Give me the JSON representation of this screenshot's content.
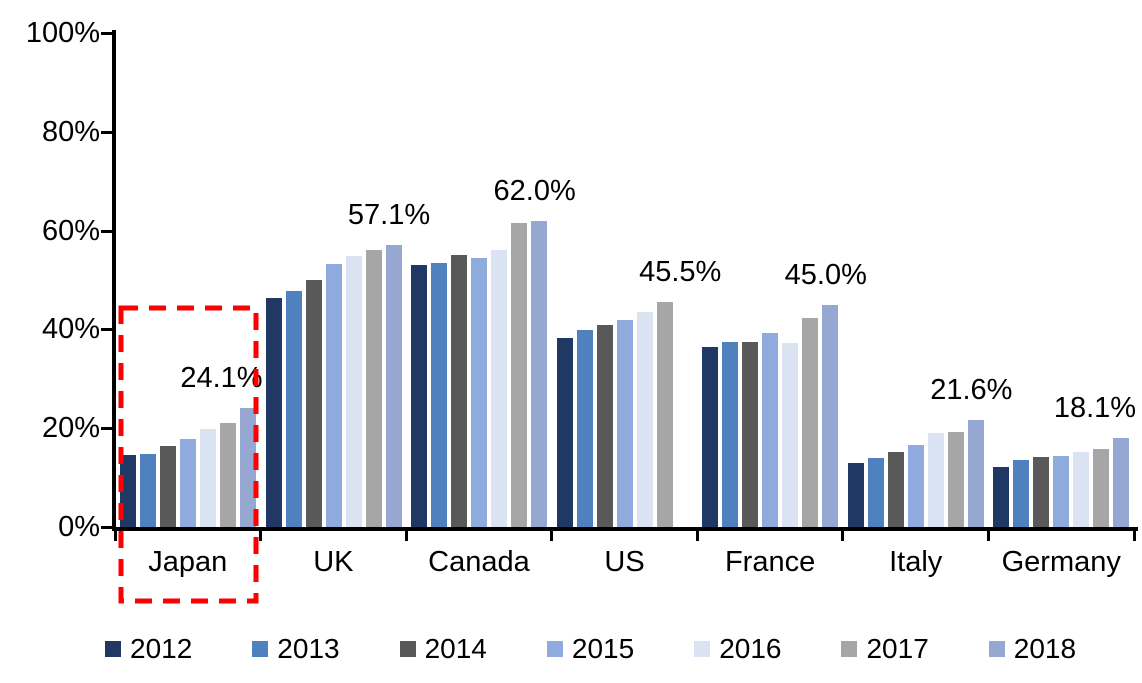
{
  "chart_data": {
    "type": "bar",
    "title": "",
    "xlabel": "",
    "ylabel": "",
    "ylim": [
      0,
      100
    ],
    "grid": false,
    "legend_position": "bottom",
    "y_axis": {
      "ticks": [
        "0%",
        "20%",
        "40%",
        "60%",
        "80%",
        "100%"
      ],
      "tick_values": [
        0,
        20,
        40,
        60,
        80,
        100
      ]
    },
    "categories": [
      "Japan",
      "UK",
      "Canada",
      "US",
      "France",
      "Italy",
      "Germany"
    ],
    "series": [
      {
        "name": "2012",
        "color": "#1F3864",
        "values": [
          14.5,
          46.3,
          53.0,
          38.2,
          36.4,
          13.0,
          12.2
        ]
      },
      {
        "name": "2013",
        "color": "#4E81BD",
        "values": [
          14.8,
          47.8,
          53.5,
          39.9,
          37.5,
          13.9,
          13.6
        ]
      },
      {
        "name": "2014",
        "color": "#595959",
        "values": [
          16.3,
          50.0,
          55.0,
          40.8,
          37.5,
          15.2,
          14.2
        ]
      },
      {
        "name": "2015",
        "color": "#8FAADC",
        "values": [
          17.8,
          53.2,
          54.5,
          42.0,
          39.2,
          16.7,
          14.4
        ]
      },
      {
        "name": "2016",
        "color": "#DAE3F2",
        "values": [
          19.8,
          54.8,
          56.1,
          43.5,
          37.2,
          19.0,
          15.1
        ]
      },
      {
        "name": "2017",
        "color": "#A6A6A6",
        "values": [
          21.0,
          56.0,
          61.5,
          45.5,
          42.3,
          19.2,
          15.8
        ]
      },
      {
        "name": "2018",
        "color": "#96A8D2",
        "values": [
          24.1,
          57.1,
          62.0,
          null,
          45.0,
          21.6,
          18.1
        ]
      }
    ],
    "annotations": [
      {
        "category": "Japan",
        "label": "24.1%"
      },
      {
        "category": "UK",
        "label": "57.1%"
      },
      {
        "category": "Canada",
        "label": "62.0%"
      },
      {
        "category": "US",
        "label": "45.5%"
      },
      {
        "category": "France",
        "label": "45.0%"
      },
      {
        "category": "Italy",
        "label": "21.6%"
      },
      {
        "category": "Germany",
        "label": "18.1%"
      }
    ],
    "highlight_box": {
      "category": "Japan",
      "color": "#FF0000",
      "style": "dashed"
    }
  }
}
